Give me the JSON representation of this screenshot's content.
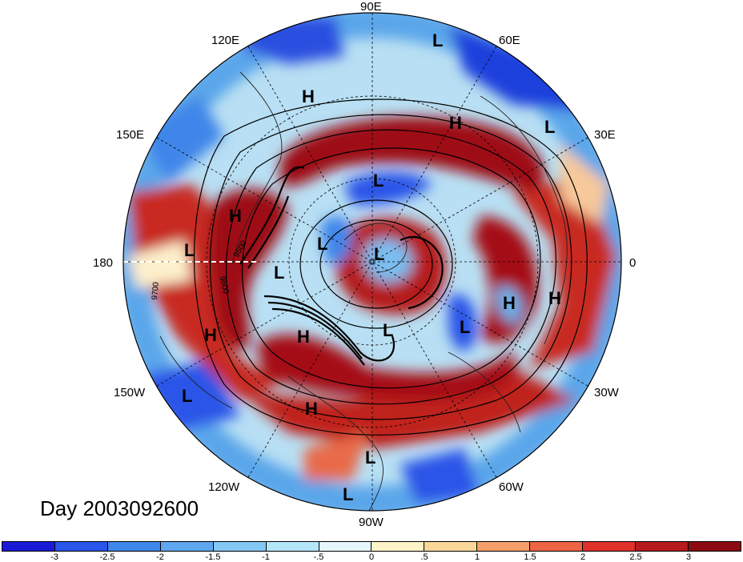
{
  "map": {
    "projection": "north-polar-stereographic",
    "longitude_labels": {
      "lon_90e": "90E",
      "lon_60e": "60E",
      "lon_30e": "30E",
      "lon_0": "0",
      "lon_30w": "30W",
      "lon_60w": "60W",
      "lon_90w": "90W",
      "lon_120w": "120W",
      "lon_150w": "150W",
      "lon_180": "180",
      "lon_150e": "150E",
      "lon_120e": "120E"
    },
    "contour_labels": [
      "9600",
      "9700",
      "9500"
    ],
    "pressure_systems": [
      {
        "type": "L"
      },
      {
        "type": "L"
      },
      {
        "type": "H"
      },
      {
        "type": "H"
      },
      {
        "type": "L"
      },
      {
        "type": "H"
      },
      {
        "type": "L"
      },
      {
        "type": "L"
      },
      {
        "type": "L"
      },
      {
        "type": "L"
      },
      {
        "type": "H"
      },
      {
        "type": "H"
      },
      {
        "type": "L"
      },
      {
        "type": "L"
      },
      {
        "type": "H"
      },
      {
        "type": "H"
      },
      {
        "type": "H"
      },
      {
        "type": "L"
      },
      {
        "type": "L"
      },
      {
        "type": "L"
      }
    ],
    "colors": {
      "deep_red": "#a50f15",
      "red": "#d7301f",
      "light_red": "#f4a582",
      "cream": "#fdf5d4",
      "light_blue": "#b5e3f7",
      "blue": "#3a8ee0",
      "deep_blue": "#1a30d8"
    }
  },
  "day_label": "Day 2003092600",
  "colorbar": {
    "tick_labels": [
      "-3",
      "-2.5",
      "-2",
      "-1.5",
      "-1",
      "-.5",
      "0",
      ".5",
      "1",
      "1.5",
      "2",
      "2.5",
      "3"
    ],
    "colors": [
      "#1a1ad6",
      "#2a55e8",
      "#3f86ea",
      "#5fa8f0",
      "#84c8f4",
      "#b4e6f9",
      "#e6f6fb",
      "#fdf3c8",
      "#fbd89a",
      "#f59f6a",
      "#ec6444",
      "#e0302a",
      "#b51a1e",
      "#8c0a12"
    ]
  }
}
